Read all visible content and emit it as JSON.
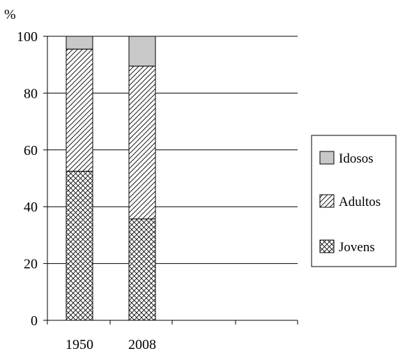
{
  "chart_data": {
    "type": "bar",
    "stacked": true,
    "ylabel": "%",
    "ylim": [
      0,
      100
    ],
    "yticks": [
      0,
      20,
      40,
      60,
      80,
      100
    ],
    "grid": true,
    "legend_position": "right",
    "categories": [
      "1950",
      "2008"
    ],
    "series": [
      {
        "name": "Jovens",
        "values": [
          52.5,
          35.7
        ],
        "pattern": "crosshatch",
        "color": "#ffffff"
      },
      {
        "name": "Adultos",
        "values": [
          43.0,
          53.8
        ],
        "pattern": "diagonal",
        "color": "#ffffff"
      },
      {
        "name": "Idosos",
        "values": [
          4.5,
          10.5
        ],
        "pattern": "solid",
        "color": "#c8c8c8"
      }
    ],
    "legend_order": [
      "Idosos",
      "Adultos",
      "Jovens"
    ]
  }
}
